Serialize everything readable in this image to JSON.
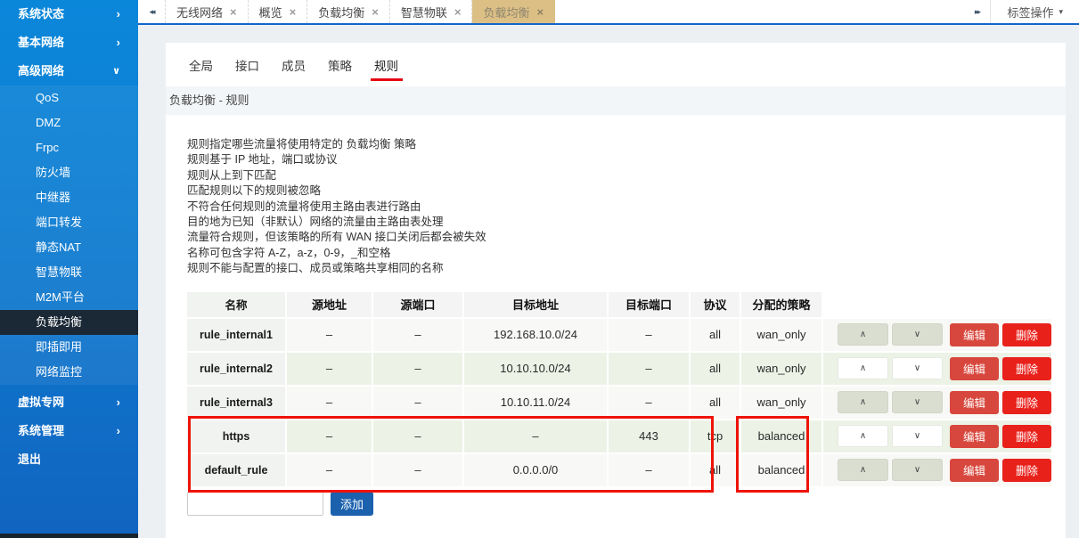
{
  "icons": {
    "collapse_left": "◂◂",
    "collapse_right": "▸▸",
    "close": "×",
    "caret_down": "▾",
    "chevron_right": "›",
    "chevron_down": "∨",
    "move_up": "∧",
    "move_down": "∨"
  },
  "colors": {
    "sidebar_blue_top": "#0b87da",
    "sidebar_blue_bottom": "#1164c0",
    "sidebar_selected_bg": "#1b2836",
    "active_tab_bg": "#dcbf85",
    "tabbar_border_blue": "#1166cb",
    "tab_underline_red": "#e60012",
    "row_stripe_green": "#ecf3e6",
    "edit_button_red": "#d8473d",
    "delete_button_red": "#e9211b",
    "add_button_blue": "#1b61ae",
    "highlight_box_red": "#ee1308"
  },
  "sidebar": {
    "top_items": [
      {
        "label": "系统状态",
        "chevron": "right"
      },
      {
        "label": "基本网络",
        "chevron": "right"
      },
      {
        "label": "高级网络",
        "chevron": "down"
      }
    ],
    "submenu_items": [
      "QoS",
      "DMZ",
      "Frpc",
      "防火墙",
      "中继器",
      "端口转发",
      "静态NAT",
      "智慧物联",
      "M2M平台",
      "负载均衡",
      "即插即用",
      "网络监控"
    ],
    "selected": "负载均衡",
    "bottom_items": [
      {
        "label": "虚拟专网",
        "chevron": "right"
      },
      {
        "label": "系统管理",
        "chevron": "right"
      },
      {
        "label": "退出",
        "chevron": "none"
      }
    ]
  },
  "tabbar": {
    "tabs": [
      {
        "label": "无线网络",
        "active": false
      },
      {
        "label": "概览",
        "active": false
      },
      {
        "label": "负载均衡",
        "active": false
      },
      {
        "label": "智慧物联",
        "active": false
      },
      {
        "label": "负载均衡",
        "active": true
      }
    ],
    "menu_label": "标签操作"
  },
  "content": {
    "tabs": [
      "全局",
      "接口",
      "成员",
      "策略",
      "规则"
    ],
    "active_tab": "规则",
    "breadcrumb": "负载均衡 - 规则",
    "description_lines": [
      "规则指定哪些流量将使用特定的 负载均衡 策略",
      "规则基于 IP 地址，端口或协议",
      "规则从上到下匹配",
      "匹配规则以下的规则被忽略",
      "不符合任何规则的流量将使用主路由表进行路由",
      "目的地为已知（非默认）网络的流量由主路由表处理",
      "流量符合规则，但该策略的所有 WAN 接口关闭后都会被失效",
      "名称可包含字符 A-Z，a-z，0-9，_和空格",
      "规则不能与配置的接口、成员或策略共享相同的名称"
    ],
    "table": {
      "headers": [
        "名称",
        "源地址",
        "源端口",
        "目标地址",
        "目标端口",
        "协议",
        "分配的策略"
      ],
      "rows": [
        {
          "name": "rule_internal1",
          "src": "–",
          "sport": "–",
          "dst": "192.168.10.0/24",
          "dport": "–",
          "proto": "all",
          "policy": "wan_only"
        },
        {
          "name": "rule_internal2",
          "src": "–",
          "sport": "–",
          "dst": "10.10.10.0/24",
          "dport": "–",
          "proto": "all",
          "policy": "wan_only"
        },
        {
          "name": "rule_internal3",
          "src": "–",
          "sport": "–",
          "dst": "10.10.11.0/24",
          "dport": "–",
          "proto": "all",
          "policy": "wan_only"
        },
        {
          "name": "https",
          "src": "–",
          "sport": "–",
          "dst": "–",
          "dport": "443",
          "proto": "tcp",
          "policy": "balanced"
        },
        {
          "name": "default_rule",
          "src": "–",
          "sport": "–",
          "dst": "0.0.0.0/0",
          "dport": "–",
          "proto": "all",
          "policy": "balanced"
        }
      ],
      "row_buttons": {
        "edit": "编辑",
        "delete": "删除"
      }
    },
    "add_button": "添加",
    "add_input_value": ""
  }
}
